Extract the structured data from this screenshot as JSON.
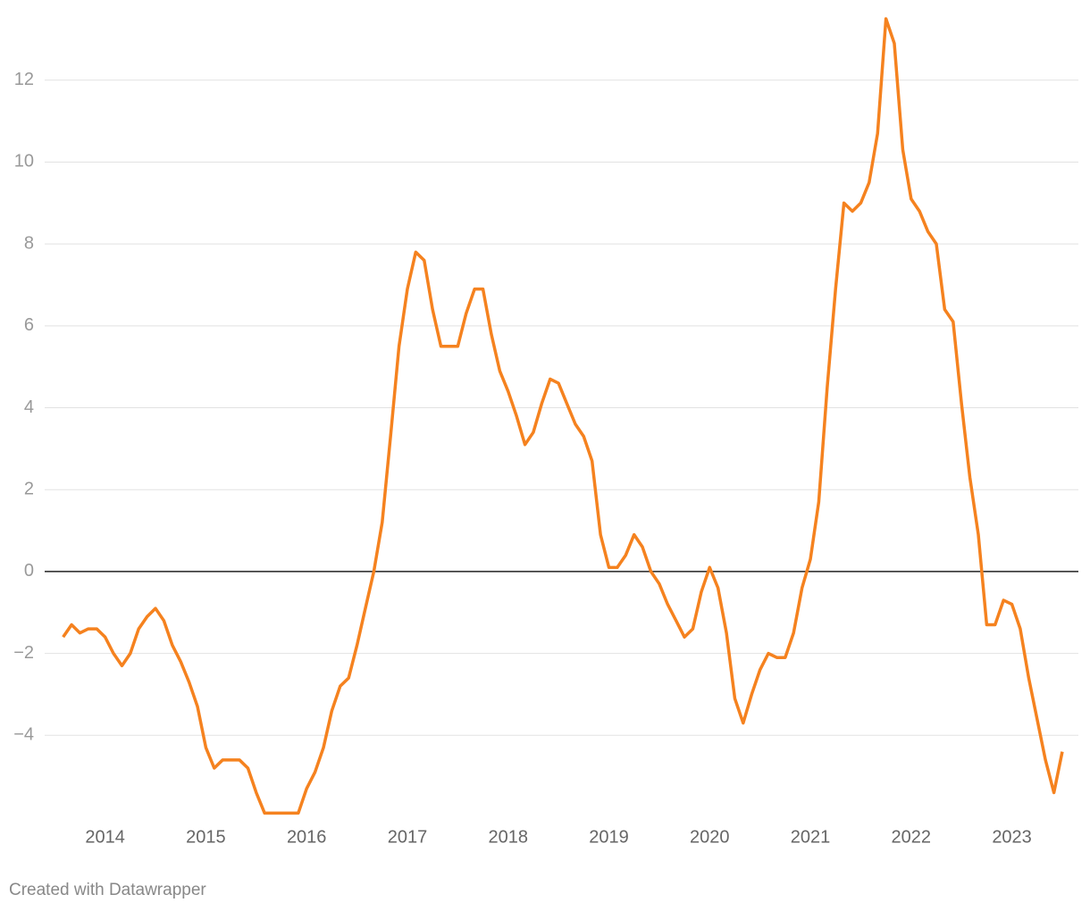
{
  "chart_data": {
    "type": "line",
    "x": [
      2013.583,
      2013.667,
      2013.75,
      2013.833,
      2013.917,
      2014,
      2014.083,
      2014.167,
      2014.25,
      2014.333,
      2014.417,
      2014.5,
      2014.583,
      2014.667,
      2014.75,
      2014.833,
      2014.917,
      2015,
      2015.083,
      2015.167,
      2015.25,
      2015.333,
      2015.417,
      2015.5,
      2015.583,
      2015.667,
      2015.75,
      2015.833,
      2015.917,
      2016,
      2016.083,
      2016.167,
      2016.25,
      2016.333,
      2016.417,
      2016.5,
      2016.583,
      2016.667,
      2016.75,
      2016.833,
      2016.917,
      2017,
      2017.083,
      2017.167,
      2017.25,
      2017.333,
      2017.417,
      2017.5,
      2017.583,
      2017.667,
      2017.75,
      2017.833,
      2017.917,
      2018,
      2018.083,
      2018.167,
      2018.25,
      2018.333,
      2018.417,
      2018.5,
      2018.583,
      2018.667,
      2018.75,
      2018.833,
      2018.917,
      2019,
      2019.083,
      2019.167,
      2019.25,
      2019.333,
      2019.417,
      2019.5,
      2019.583,
      2019.667,
      2019.75,
      2019.833,
      2019.917,
      2020,
      2020.083,
      2020.167,
      2020.25,
      2020.333,
      2020.417,
      2020.5,
      2020.583,
      2020.667,
      2020.75,
      2020.833,
      2020.917,
      2021,
      2021.083,
      2021.167,
      2021.25,
      2021.333,
      2021.417,
      2021.5,
      2021.583,
      2021.667,
      2021.75,
      2021.833,
      2021.917,
      2022,
      2022.083,
      2022.167,
      2022.25,
      2022.333,
      2022.417,
      2022.5,
      2022.583,
      2022.667,
      2022.75,
      2022.833,
      2022.917,
      2023,
      2023.083,
      2023.167,
      2023.25,
      2023.333,
      2023.417,
      2023.5
    ],
    "series": [
      {
        "color": "#f5821f",
        "values": [
          -1.6,
          -1.3,
          -1.5,
          -1.4,
          -1.4,
          -1.6,
          -2.0,
          -2.3,
          -2.0,
          -1.4,
          -1.1,
          -0.9,
          -1.2,
          -1.8,
          -2.2,
          -2.7,
          -3.3,
          -4.3,
          -4.8,
          -4.6,
          -4.6,
          -4.6,
          -4.8,
          -5.4,
          -5.9,
          -5.9,
          -5.9,
          -5.9,
          -5.9,
          -5.3,
          -4.9,
          -4.3,
          -3.4,
          -2.8,
          -2.6,
          -1.8,
          -0.9,
          0.0,
          1.2,
          3.3,
          5.5,
          6.9,
          7.8,
          7.6,
          6.4,
          5.5,
          5.5,
          5.5,
          6.3,
          6.9,
          6.9,
          5.8,
          4.9,
          4.4,
          3.8,
          3.1,
          3.4,
          4.1,
          4.7,
          4.6,
          4.1,
          3.6,
          3.3,
          2.7,
          0.9,
          0.1,
          0.1,
          0.4,
          0.9,
          0.6,
          0.0,
          -0.3,
          -0.8,
          -1.2,
          -1.6,
          -1.4,
          -0.5,
          0.1,
          -0.4,
          -1.5,
          -3.1,
          -3.7,
          -3.0,
          -2.4,
          -2.0,
          -2.1,
          -2.1,
          -1.5,
          -0.4,
          0.3,
          1.7,
          4.5,
          6.9,
          9.0,
          8.8,
          9.0,
          9.5,
          10.7,
          13.5,
          12.9,
          10.3,
          9.1,
          8.8,
          8.3,
          8.0,
          6.4,
          6.1,
          4.1,
          2.3,
          0.9,
          -1.3,
          -1.3,
          -0.7,
          -0.8,
          -1.4,
          -2.6,
          -3.6,
          -4.6,
          -5.4,
          -4.4
        ]
      }
    ],
    "xlim": [
      2013.4,
      2023.66
    ],
    "xticks": [
      2014,
      2015,
      2016,
      2017,
      2018,
      2019,
      2020,
      2021,
      2022,
      2023
    ],
    "ylim": [
      -6,
      13.5
    ],
    "yticks": [
      {
        "value": -4,
        "label": "−4"
      },
      {
        "value": -2,
        "label": "−2"
      },
      0,
      2,
      4,
      6,
      8,
      10,
      12
    ],
    "grid": true,
    "footer": "Created with Datawrapper"
  }
}
